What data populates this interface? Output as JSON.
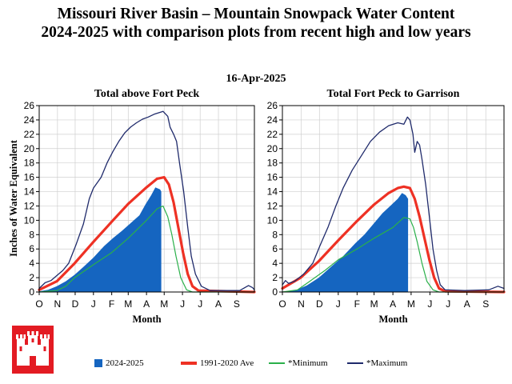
{
  "title_line1": "Missouri River Basin – Mountain Snowpack Water Content",
  "title_line2": "2024-2025 with comparison plots from recent high and low years",
  "date": "16-Apr-2025",
  "y_axis_label": "Inches of Water Equivalent",
  "x_axis_label": "Month",
  "months": [
    "O",
    "N",
    "D",
    "J",
    "F",
    "M",
    "A",
    "M",
    "J",
    "J",
    "A",
    "S"
  ],
  "yticks": [
    "0",
    "2",
    "4",
    "6",
    "8",
    "10",
    "12",
    "14",
    "16",
    "18",
    "20",
    "22",
    "24",
    "26"
  ],
  "legend": {
    "current": "2024-2025",
    "average": "1991-2020 Ave",
    "minimum": "*Minimum",
    "maximum": "*Maximum"
  },
  "colors": {
    "current": "#1565c0",
    "average": "#ee3124",
    "minimum": "#2ab04a",
    "maximum": "#1f2a6b",
    "logo": "#e31b23"
  },
  "chart_data": [
    {
      "type": "area",
      "title": "Total above Fort Peck",
      "xlabel": "Month",
      "ylabel": "Inches of Water Equivalent",
      "ylim": [
        0,
        26
      ],
      "x_unit": "days since Oct 1",
      "series": [
        {
          "name": "2024-2025",
          "style": "filled-area",
          "points": [
            [
              0,
              0.1
            ],
            [
              15,
              0.3
            ],
            [
              30,
              0.8
            ],
            [
              45,
              1.5
            ],
            [
              60,
              2.4
            ],
            [
              75,
              3.5
            ],
            [
              92,
              4.8
            ],
            [
              110,
              6.4
            ],
            [
              125,
              7.5
            ],
            [
              140,
              8.5
            ],
            [
              155,
              9.6
            ],
            [
              170,
              10.7
            ],
            [
              180,
              12.2
            ],
            [
              190,
              13.5
            ],
            [
              197,
              14.6
            ],
            [
              205,
              14.3
            ],
            [
              207,
              14.0
            ]
          ]
        },
        {
          "name": "1991-2020 Ave",
          "points": [
            [
              0,
              0.3
            ],
            [
              30,
              1.5
            ],
            [
              60,
              4.0
            ],
            [
              92,
              7.0
            ],
            [
              123,
              9.8
            ],
            [
              151,
              12.3
            ],
            [
              182,
              14.6
            ],
            [
              200,
              15.8
            ],
            [
              212,
              16.0
            ],
            [
              220,
              15.0
            ],
            [
              228,
              12.5
            ],
            [
              236,
              9.0
            ],
            [
              244,
              5.5
            ],
            [
              252,
              2.5
            ],
            [
              260,
              0.8
            ],
            [
              270,
              0.2
            ],
            [
              365,
              0.0
            ]
          ]
        },
        {
          "name": "*Minimum",
          "points": [
            [
              0,
              0.0
            ],
            [
              30,
              0.2
            ],
            [
              45,
              0.8
            ],
            [
              60,
              2.0
            ],
            [
              92,
              3.8
            ],
            [
              123,
              5.5
            ],
            [
              151,
              7.5
            ],
            [
              182,
              10.0
            ],
            [
              200,
              11.6
            ],
            [
              210,
              12.0
            ],
            [
              218,
              10.5
            ],
            [
              225,
              8.0
            ],
            [
              232,
              5.0
            ],
            [
              240,
              2.0
            ],
            [
              250,
              0.3
            ],
            [
              260,
              0.0
            ],
            [
              365,
              0.0
            ]
          ]
        },
        {
          "name": "*Maximum",
          "points": [
            [
              0,
              0.5
            ],
            [
              10,
              1.3
            ],
            [
              20,
              1.6
            ],
            [
              30,
              2.3
            ],
            [
              40,
              3.0
            ],
            [
              50,
              4.0
            ],
            [
              62,
              6.5
            ],
            [
              75,
              9.5
            ],
            [
              85,
              13.0
            ],
            [
              92,
              14.5
            ],
            [
              105,
              16.0
            ],
            [
              115,
              18.0
            ],
            [
              125,
              19.6
            ],
            [
              135,
              21.0
            ],
            [
              145,
              22.2
            ],
            [
              155,
              23.0
            ],
            [
              165,
              23.6
            ],
            [
              175,
              24.1
            ],
            [
              185,
              24.4
            ],
            [
              195,
              24.8
            ],
            [
              210,
              25.2
            ],
            [
              218,
              24.5
            ],
            [
              222,
              23.0
            ],
            [
              228,
              22.0
            ],
            [
              233,
              21.0
            ],
            [
              238,
              18.0
            ],
            [
              245,
              14.0
            ],
            [
              252,
              9.0
            ],
            [
              258,
              5.0
            ],
            [
              265,
              2.5
            ],
            [
              275,
              0.8
            ],
            [
              290,
              0.2
            ],
            [
              340,
              0.2
            ],
            [
              355,
              0.9
            ],
            [
              362,
              0.6
            ],
            [
              365,
              0.3
            ]
          ]
        }
      ]
    },
    {
      "type": "area",
      "title": "Total Fort Peck to Garrison",
      "xlabel": "Month",
      "ylabel": "Inches of Water Equivalent",
      "ylim": [
        0,
        26
      ],
      "x_unit": "days since Oct 1",
      "series": [
        {
          "name": "2024-2025",
          "style": "filled-area",
          "points": [
            [
              0,
              0.0
            ],
            [
              20,
              0.2
            ],
            [
              40,
              0.9
            ],
            [
              60,
              2.0
            ],
            [
              80,
              3.5
            ],
            [
              100,
              5.0
            ],
            [
              120,
              6.8
            ],
            [
              135,
              8.0
            ],
            [
              150,
              9.5
            ],
            [
              165,
              11.0
            ],
            [
              180,
              12.2
            ],
            [
              190,
              13.0
            ],
            [
              197,
              13.8
            ],
            [
              203,
              13.5
            ],
            [
              207,
              13.0
            ]
          ]
        },
        {
          "name": "1991-2020 Ave",
          "points": [
            [
              0,
              0.5
            ],
            [
              30,
              2.0
            ],
            [
              60,
              4.3
            ],
            [
              92,
              7.2
            ],
            [
              123,
              9.9
            ],
            [
              151,
              12.2
            ],
            [
              175,
              13.8
            ],
            [
              190,
              14.5
            ],
            [
              200,
              14.7
            ],
            [
              210,
              14.5
            ],
            [
              218,
              13.0
            ],
            [
              226,
              10.5
            ],
            [
              234,
              7.5
            ],
            [
              242,
              4.5
            ],
            [
              250,
              2.0
            ],
            [
              258,
              0.5
            ],
            [
              268,
              0.1
            ],
            [
              365,
              0.0
            ]
          ]
        },
        {
          "name": "*Minimum",
          "points": [
            [
              0,
              0.0
            ],
            [
              25,
              0.3
            ],
            [
              45,
              1.5
            ],
            [
              70,
              3.0
            ],
            [
              92,
              4.5
            ],
            [
              123,
              6.0
            ],
            [
              151,
              7.5
            ],
            [
              182,
              9.0
            ],
            [
              200,
              10.4
            ],
            [
              210,
              10.2
            ],
            [
              216,
              9.0
            ],
            [
              222,
              7.0
            ],
            [
              230,
              4.0
            ],
            [
              238,
              1.5
            ],
            [
              248,
              0.3
            ],
            [
              258,
              0.0
            ],
            [
              365,
              0.0
            ]
          ]
        },
        {
          "name": "*Maximum",
          "points": [
            [
              0,
              1.0
            ],
            [
              5,
              1.6
            ],
            [
              10,
              1.2
            ],
            [
              20,
              1.5
            ],
            [
              35,
              2.5
            ],
            [
              50,
              4.0
            ],
            [
              62,
              6.5
            ],
            [
              75,
              9.0
            ],
            [
              88,
              12.0
            ],
            [
              100,
              14.5
            ],
            [
              115,
              17.0
            ],
            [
              130,
              19.0
            ],
            [
              145,
              21.0
            ],
            [
              160,
              22.3
            ],
            [
              175,
              23.2
            ],
            [
              190,
              23.6
            ],
            [
              200,
              23.4
            ],
            [
              206,
              24.4
            ],
            [
              210,
              24.0
            ],
            [
              215,
              22.0
            ],
            [
              218,
              19.5
            ],
            [
              222,
              21.0
            ],
            [
              226,
              20.5
            ],
            [
              230,
              18.5
            ],
            [
              236,
              15.0
            ],
            [
              242,
              10.5
            ],
            [
              248,
              6.0
            ],
            [
              254,
              3.0
            ],
            [
              260,
              1.0
            ],
            [
              268,
              0.3
            ],
            [
              300,
              0.2
            ],
            [
              340,
              0.3
            ],
            [
              355,
              0.8
            ],
            [
              365,
              0.5
            ]
          ]
        }
      ]
    }
  ]
}
